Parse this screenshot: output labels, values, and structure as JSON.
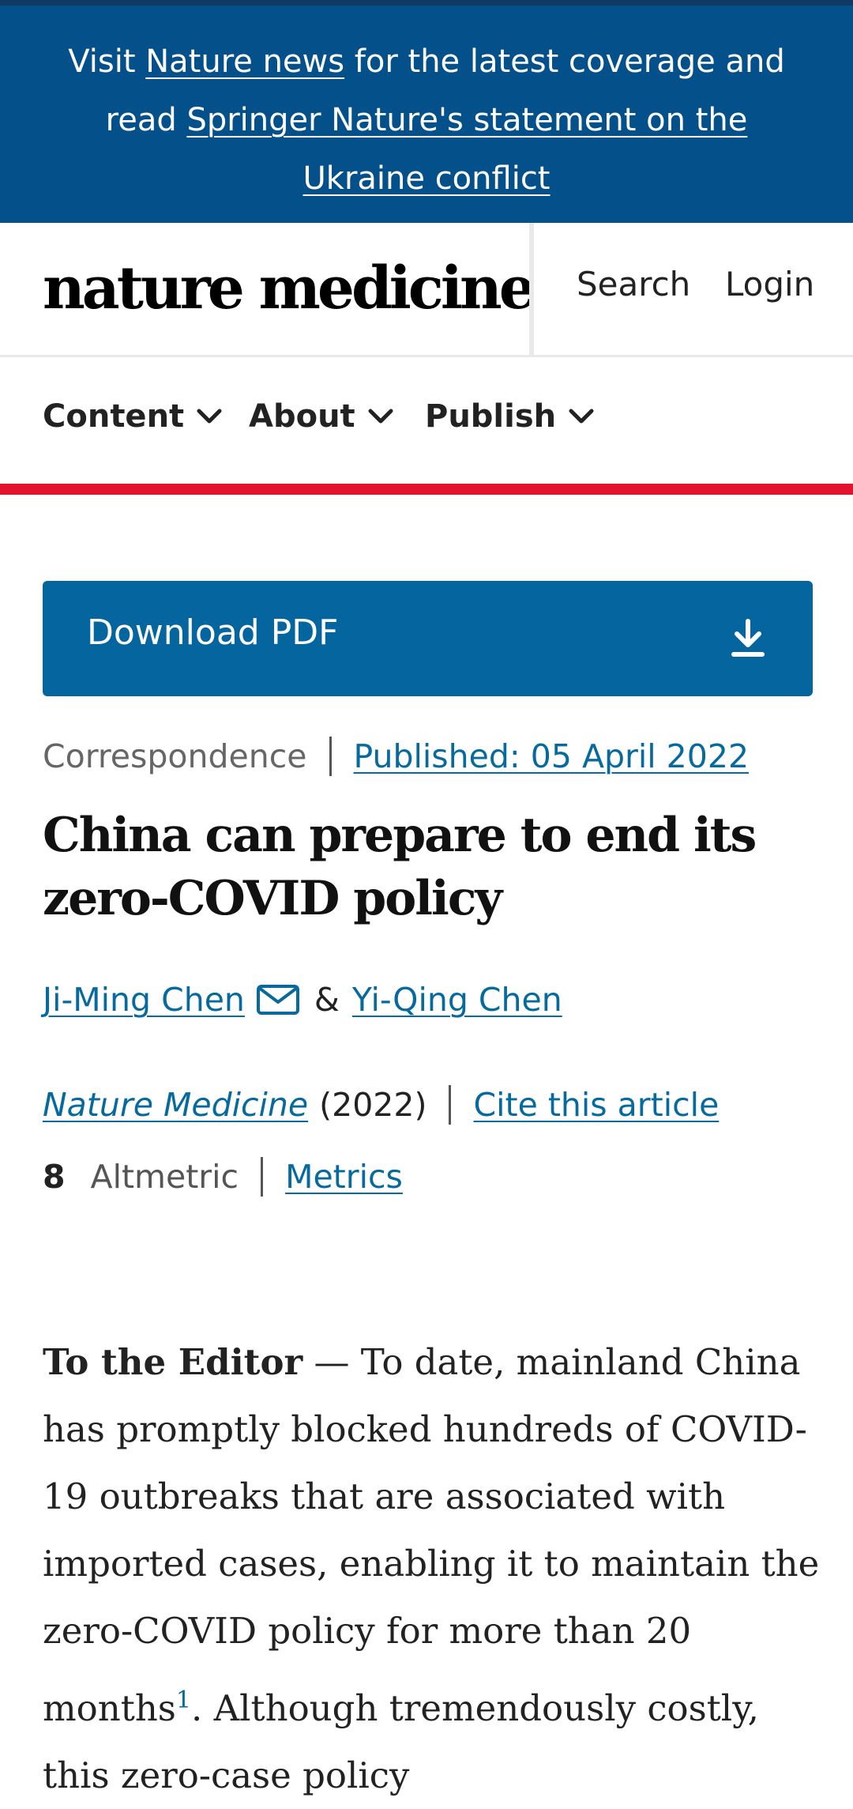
{
  "banner": {
    "text_visit": "Visit ",
    "link_news": "Nature news",
    "text_mid": " for the latest coverage and read ",
    "link_statement": "Springer Nature's statement on the Ukraine conflict"
  },
  "header": {
    "logo": "nature medicine",
    "search": "Search",
    "login": "Login"
  },
  "nav": {
    "items": [
      {
        "label": "Content"
      },
      {
        "label": "About"
      },
      {
        "label": "Publish"
      }
    ]
  },
  "pdf": {
    "label": "Download PDF",
    "icon": "download-icon"
  },
  "article": {
    "type": "Correspondence",
    "published": "Published: 05 April 2022",
    "title": "China can prepare to end its zero-COVID policy",
    "authors": [
      {
        "name": "Ji-Ming Chen"
      },
      {
        "name": "Yi-Qing Chen"
      }
    ],
    "author_sep": "&",
    "journal": "Nature Medicine",
    "year": "(2022)",
    "cite": "Cite this article",
    "altmetric_score": "8",
    "altmetric_label": "Altmetric",
    "metrics": "Metrics",
    "body_lead": "To the Editor",
    "body_text": " — To date, mainland China has promptly blocked hundreds of COVID-19 outbreaks that are associated with imported cases, enabling it to maintain the zero-COVID policy for more than 20 months",
    "body_ref": "1",
    "body_text2": ". Although tremendously costly, this zero-case policy"
  },
  "colors": {
    "banner_bg": "#03508b",
    "accent_red": "#e3122f",
    "pdf_bg": "#05659f",
    "link_blue": "#066a9e"
  }
}
